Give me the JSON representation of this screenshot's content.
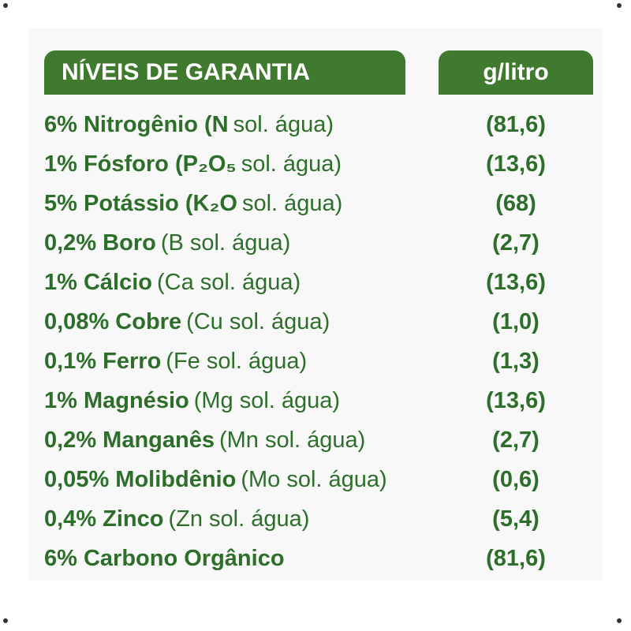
{
  "header": {
    "left": "NÍVEIS DE GARANTIA",
    "right": "g/litro"
  },
  "rows": [
    {
      "bold": "6% Nitrogênio (N",
      "note": "sol. água)",
      "value": "(81,6)"
    },
    {
      "bold": "1% Fósforo (P₂O₅",
      "note": "sol. água)",
      "value": "(13,6)"
    },
    {
      "bold": "5% Potássio (K₂O",
      "note": "sol. água)",
      "value": "(68)"
    },
    {
      "bold": "0,2% Boro",
      "note": "(B sol. água)",
      "value": "(2,7)"
    },
    {
      "bold": "1% Cálcio",
      "note": "(Ca sol. água)",
      "value": "(13,6)"
    },
    {
      "bold": "0,08% Cobre",
      "note": "(Cu sol. água)",
      "value": "(1,0)"
    },
    {
      "bold": "0,1% Ferro",
      "note": "(Fe sol. água)",
      "value": "(1,3)"
    },
    {
      "bold": "1% Magnésio",
      "note": "(Mg sol. água)",
      "value": "(13,6)"
    },
    {
      "bold": "0,2% Manganês",
      "note": "(Mn sol. água)",
      "value": "(2,7)"
    },
    {
      "bold": "0,05% Molibdênio",
      "note": "(Mo sol. água)",
      "value": "(0,6)"
    },
    {
      "bold": "0,4% Zinco",
      "note": "(Zn sol. água)",
      "value": "(5,4)"
    },
    {
      "bold": "6% Carbono Orgânico",
      "note": "",
      "value": "(81,6)"
    }
  ],
  "colors": {
    "header_bg": "#3f7a2e",
    "text_green": "#2d6e2a",
    "panel_bg": "#f8f8f8"
  }
}
